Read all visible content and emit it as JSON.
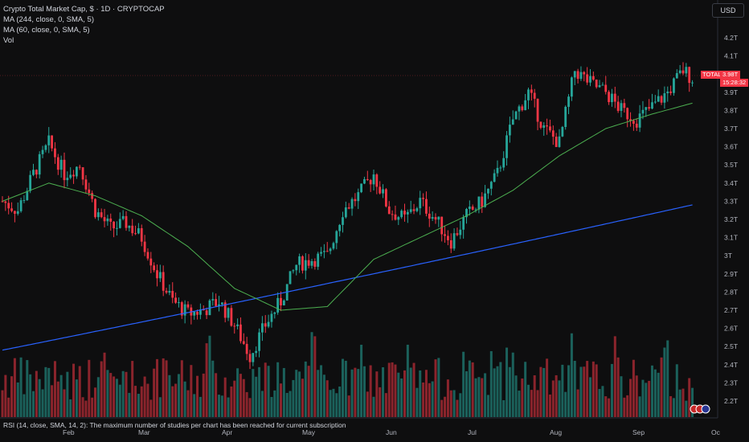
{
  "legend": {
    "title": "Crypto Total Market Cap, $ · 1D · CRYPTOCAP",
    "ma1": "MA (244, close, 0, SMA, 5)",
    "ma2": "MA (60, close, 0, SMA, 5)",
    "vol": "Vol"
  },
  "currency_button": "USD",
  "price_tag": {
    "symbol": "TOTAL",
    "value": "3.98T",
    "countdown": "15:28:32"
  },
  "rsi_notice": "RSI (14, close, SMA, 14, 2): The maximum number of studies per chart has been reached for current subscription",
  "colors": {
    "up": "#26a69a",
    "down": "#f23645",
    "ma244": "#2962ff",
    "ma60": "#4caf50",
    "background": "#0e0e0f"
  },
  "chart_data": {
    "type": "candlestick",
    "y_axis_labels": [
      "4.2T",
      "4.1T",
      "4T",
      "3.9T",
      "3.8T",
      "3.7T",
      "3.6T",
      "3.5T",
      "3.4T",
      "3.3T",
      "3.2T",
      "3.1T",
      "3T",
      "2.9T",
      "2.8T",
      "2.7T",
      "2.6T",
      "2.5T",
      "2.4T",
      "2.3T",
      "2.2T"
    ],
    "y_axis_values": [
      4.2,
      4.1,
      4.0,
      3.9,
      3.8,
      3.7,
      3.6,
      3.5,
      3.4,
      3.3,
      3.2,
      3.1,
      3.0,
      2.9,
      2.8,
      2.7,
      2.6,
      2.5,
      2.4,
      2.3,
      2.2
    ],
    "x_axis_labels": [
      "Feb",
      "Mar",
      "Apr",
      "May",
      "Jun",
      "Jul",
      "Aug",
      "Sep",
      "Oc"
    ],
    "unit": "T USD",
    "close_anchors": [
      {
        "x": 0,
        "y": 3.3
      },
      {
        "x": 5,
        "y": 3.25
      },
      {
        "x": 10,
        "y": 3.45
      },
      {
        "x": 15,
        "y": 3.62
      },
      {
        "x": 20,
        "y": 3.45
      },
      {
        "x": 25,
        "y": 3.5
      },
      {
        "x": 30,
        "y": 3.25
      },
      {
        "x": 35,
        "y": 3.15
      },
      {
        "x": 40,
        "y": 3.18
      },
      {
        "x": 45,
        "y": 3.1
      },
      {
        "x": 50,
        "y": 2.9
      },
      {
        "x": 55,
        "y": 2.75
      },
      {
        "x": 60,
        "y": 2.68
      },
      {
        "x": 65,
        "y": 2.7
      },
      {
        "x": 70,
        "y": 2.75
      },
      {
        "x": 75,
        "y": 2.62
      },
      {
        "x": 80,
        "y": 2.45
      },
      {
        "x": 85,
        "y": 2.62
      },
      {
        "x": 90,
        "y": 2.75
      },
      {
        "x": 95,
        "y": 2.95
      },
      {
        "x": 100,
        "y": 2.98
      },
      {
        "x": 105,
        "y": 3.0
      },
      {
        "x": 110,
        "y": 3.25
      },
      {
        "x": 115,
        "y": 3.33
      },
      {
        "x": 120,
        "y": 3.45
      },
      {
        "x": 125,
        "y": 3.25
      },
      {
        "x": 130,
        "y": 3.2
      },
      {
        "x": 135,
        "y": 3.3
      },
      {
        "x": 140,
        "y": 3.2
      },
      {
        "x": 145,
        "y": 3.08
      },
      {
        "x": 150,
        "y": 3.22
      },
      {
        "x": 155,
        "y": 3.3
      },
      {
        "x": 160,
        "y": 3.45
      },
      {
        "x": 165,
        "y": 3.75
      },
      {
        "x": 170,
        "y": 3.9
      },
      {
        "x": 175,
        "y": 3.7
      },
      {
        "x": 180,
        "y": 3.62
      },
      {
        "x": 185,
        "y": 4.02
      },
      {
        "x": 190,
        "y": 3.95
      },
      {
        "x": 195,
        "y": 3.9
      },
      {
        "x": 200,
        "y": 3.8
      },
      {
        "x": 205,
        "y": 3.75
      },
      {
        "x": 210,
        "y": 3.82
      },
      {
        "x": 215,
        "y": 3.9
      },
      {
        "x": 220,
        "y": 4.02
      },
      {
        "x": 223,
        "y": 3.98
      }
    ],
    "ma244": {
      "start": 2.48,
      "end": 3.28
    },
    "ma60_anchors": [
      {
        "x": 0,
        "y": 3.3
      },
      {
        "x": 15,
        "y": 3.4
      },
      {
        "x": 30,
        "y": 3.33
      },
      {
        "x": 45,
        "y": 3.22
      },
      {
        "x": 60,
        "y": 3.05
      },
      {
        "x": 75,
        "y": 2.82
      },
      {
        "x": 90,
        "y": 2.7
      },
      {
        "x": 105,
        "y": 2.72
      },
      {
        "x": 120,
        "y": 2.98
      },
      {
        "x": 135,
        "y": 3.1
      },
      {
        "x": 150,
        "y": 3.22
      },
      {
        "x": 165,
        "y": 3.36
      },
      {
        "x": 180,
        "y": 3.55
      },
      {
        "x": 195,
        "y": 3.7
      },
      {
        "x": 210,
        "y": 3.78
      },
      {
        "x": 223,
        "y": 3.84
      }
    ]
  }
}
